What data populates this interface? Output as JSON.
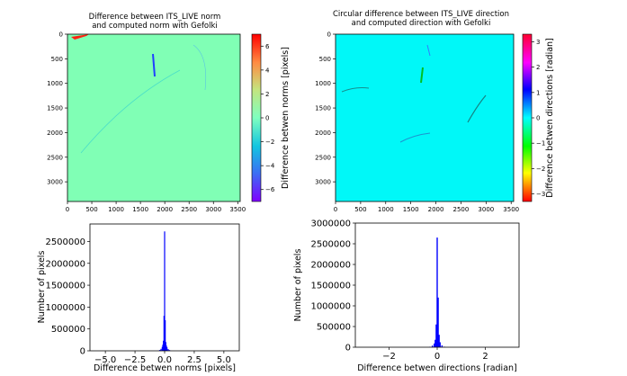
{
  "chart_data": [
    {
      "type": "heatmap",
      "title_lines": [
        "Difference between ITS_LIVE norm",
        "and computed norm with Gefolki"
      ],
      "xlim": [
        0,
        3550
      ],
      "ylim": [
        3400,
        0
      ],
      "xticks": [
        0,
        500,
        1000,
        1500,
        2000,
        2500,
        3000,
        3500
      ],
      "yticks": [
        0,
        500,
        1000,
        1500,
        2000,
        2500,
        3000
      ],
      "colorbar": {
        "label": "Difference betwen norms [pixels]",
        "range": [
          -7,
          7
        ],
        "ticks": [
          6,
          4,
          2,
          0,
          -2,
          -4,
          -6
        ],
        "tick_labels": [
          "6",
          "4",
          "2",
          "0",
          "−2",
          "−4",
          "−6"
        ],
        "colormap": "rainbow"
      },
      "background_value": 0
    },
    {
      "type": "heatmap",
      "title_lines": [
        "Circular difference between ITS_LIVE direction",
        "and computed direction with Gefolki"
      ],
      "xlim": [
        0,
        3550
      ],
      "ylim": [
        3400,
        0
      ],
      "xticks": [
        0,
        500,
        1000,
        1500,
        2000,
        2500,
        3000,
        3500
      ],
      "yticks": [
        0,
        500,
        1000,
        1500,
        2000,
        2500,
        3000
      ],
      "colorbar": {
        "label": "Difference betwen directions [radian]",
        "range": [
          -3.3,
          3.3
        ],
        "ticks": [
          3,
          2,
          1,
          0,
          -1,
          -2,
          -3
        ],
        "tick_labels": [
          "3",
          "2",
          "1",
          "0",
          "−1",
          "−2",
          "−3"
        ],
        "colormap": "hsv"
      },
      "background_value": 0
    },
    {
      "type": "bar",
      "xlabel": "Difference betwen norms [pixels]",
      "ylabel": "Number of pixels",
      "xlim": [
        -6.3,
        6.3
      ],
      "ylim": [
        0,
        2900000
      ],
      "xticks": [
        -5,
        -2.5,
        0,
        2.5,
        5
      ],
      "xtick_labels": [
        "−5.0",
        "−2.5",
        "0.0",
        "2.5",
        "5.0"
      ],
      "yticks": [
        0,
        500000,
        1000000,
        1500000,
        2000000,
        2500000
      ],
      "ytick_labels": [
        "0",
        "500000",
        "1000000",
        "1500000",
        "2000000",
        "2500000"
      ],
      "bar_color": "#0000ff",
      "x": [
        -0.5,
        -0.4,
        -0.3,
        -0.2,
        -0.15,
        -0.1,
        -0.05,
        0,
        0.05,
        0.1,
        0.15,
        0.2,
        0.3,
        0.4,
        0.5
      ],
      "values": [
        8000,
        20000,
        45000,
        90000,
        140000,
        230000,
        800000,
        2730000,
        700000,
        200000,
        120000,
        80000,
        40000,
        18000,
        7000
      ]
    },
    {
      "type": "bar",
      "xlabel": "Difference betwen directions [radian]",
      "ylabel": "Number of pixels",
      "xlim": [
        -3.4,
        3.4
      ],
      "ylim": [
        0,
        3000000
      ],
      "xticks": [
        -2,
        0,
        2
      ],
      "xtick_labels": [
        "−2",
        "0",
        "2"
      ],
      "yticks": [
        0,
        500000,
        1000000,
        1500000,
        2000000,
        2500000,
        3000000
      ],
      "ytick_labels": [
        "0",
        "500000",
        "1000000",
        "1500000",
        "2000000",
        "2500000",
        "3000000"
      ],
      "bar_color": "#0000ff",
      "x": [
        -0.3,
        -0.2,
        -0.12,
        -0.08,
        -0.04,
        0,
        0.04,
        0.08,
        0.12,
        0.2,
        0.3
      ],
      "values": [
        10000,
        40000,
        90000,
        180000,
        550000,
        2650000,
        1200000,
        300000,
        120000,
        45000,
        12000
      ]
    }
  ]
}
